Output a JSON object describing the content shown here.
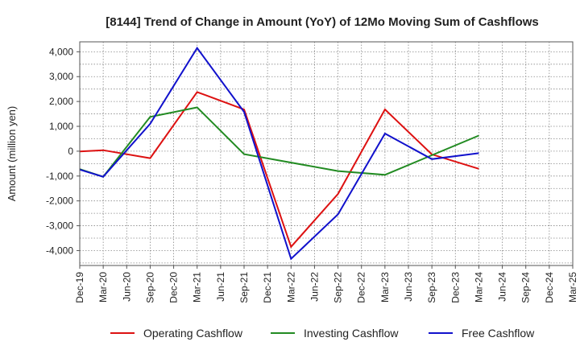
{
  "chart_data": {
    "type": "line",
    "title": "[8144]  Trend of Change in Amount (YoY) of 12Mo Moving Sum of Cashflows",
    "xlabel": "",
    "ylabel": "Amount (million yen)",
    "ylim": [
      -4600,
      4400
    ],
    "yticks": [
      4000,
      3000,
      2000,
      1000,
      0,
      -1000,
      -2000,
      -3000,
      -4000
    ],
    "ytick_labels": [
      "4,000",
      "3,000",
      "2,000",
      "1,000",
      "0",
      "-1,000",
      "-2,000",
      "-3,000",
      "-4,000"
    ],
    "categories": [
      "Dec-19",
      "Mar-20",
      "Jun-20",
      "Sep-20",
      "Dec-20",
      "Mar-21",
      "Jun-21",
      "Sep-21",
      "Dec-21",
      "Mar-22",
      "Jun-22",
      "Sep-22",
      "Dec-22",
      "Mar-23",
      "Jun-23",
      "Sep-23",
      "Dec-23",
      "Mar-24",
      "Jun-24",
      "Sep-24",
      "Dec-24",
      "Mar-25"
    ],
    "grid": true,
    "legend_position": "bottom",
    "series": [
      {
        "name": "Operating Cashflow",
        "color": "#dd1111",
        "values": [
          -10,
          40,
          null,
          -280,
          null,
          2380,
          null,
          1680,
          null,
          -3850,
          null,
          -1720,
          null,
          1680,
          null,
          -130,
          null,
          -710,
          null,
          null,
          null,
          null
        ]
      },
      {
        "name": "Investing Cashflow",
        "color": "#228b22",
        "values": [
          -720,
          -1030,
          null,
          1380,
          null,
          1760,
          null,
          -120,
          null,
          null,
          null,
          -800,
          null,
          -950,
          null,
          null,
          null,
          630,
          null,
          null,
          null,
          null
        ]
      },
      {
        "name": "Free Cashflow",
        "color": "#1111cc",
        "values": [
          -740,
          -1030,
          null,
          1100,
          null,
          4150,
          null,
          1580,
          null,
          -4330,
          null,
          -2540,
          null,
          710,
          null,
          -320,
          null,
          -80,
          null,
          null,
          null,
          null
        ]
      }
    ]
  }
}
